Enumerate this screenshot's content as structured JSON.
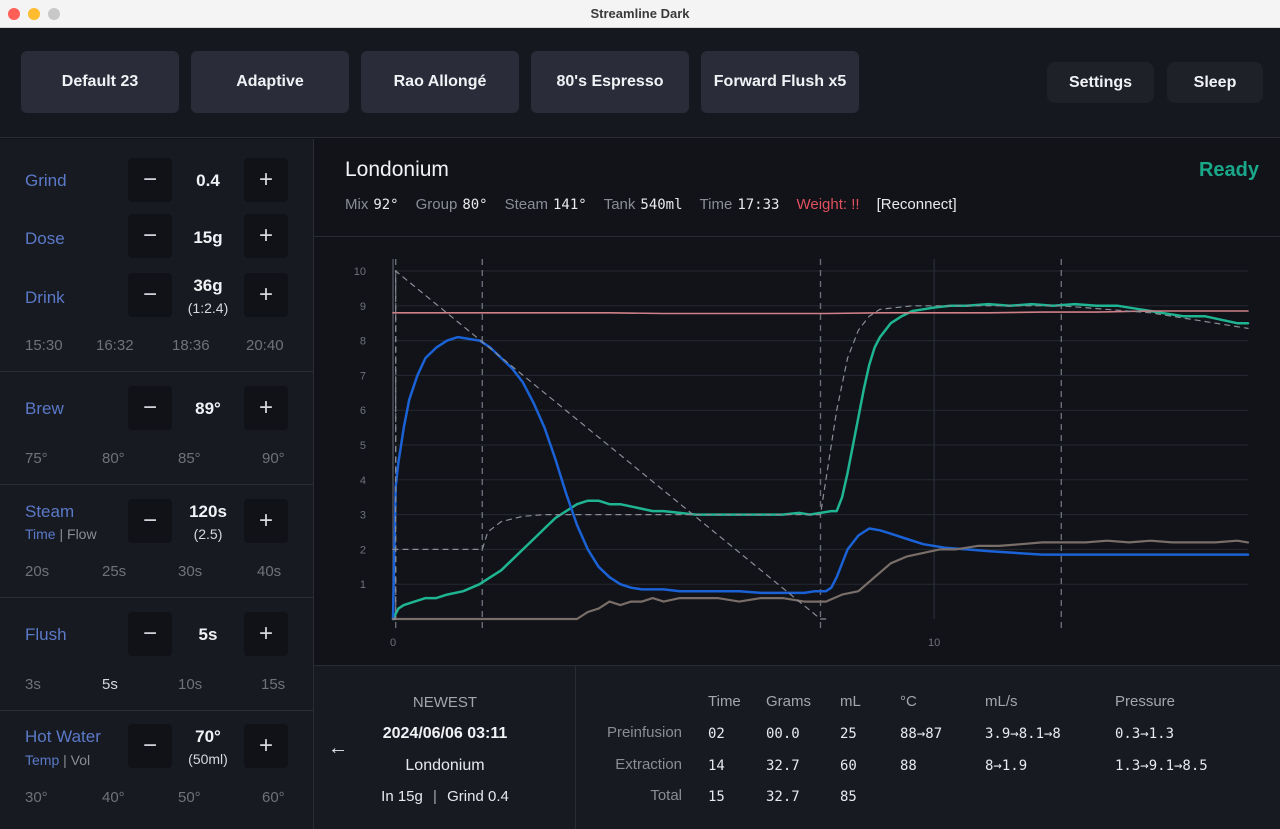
{
  "window": {
    "title": "Streamline Dark"
  },
  "presets": [
    "Default 23",
    "Adaptive",
    "Rao Allongé",
    "80's Espresso",
    "Forward Flush x5"
  ],
  "top_buttons": {
    "settings": "Settings",
    "sleep": "Sleep"
  },
  "params": {
    "grind": {
      "label": "Grind",
      "value": "0.4"
    },
    "dose": {
      "label": "Dose",
      "value": "15g"
    },
    "drink": {
      "label": "Drink",
      "value": "36g",
      "ratio": "(1:2.4)",
      "quick": [
        "15:30",
        "16:32",
        "18:36",
        "20:40"
      ]
    },
    "brew": {
      "label": "Brew",
      "value": "89°",
      "quick": [
        "75°",
        "80°",
        "85°",
        "90°"
      ]
    },
    "steam": {
      "label": "Steam",
      "sub_active": "Time",
      "sub_sep": "|",
      "sub_other": "Flow",
      "value": "120s",
      "sub_value": "(2.5)",
      "quick": [
        "20s",
        "25s",
        "30s",
        "40s"
      ]
    },
    "flush": {
      "label": "Flush",
      "value": "5s",
      "quick": [
        "3s",
        "5s",
        "10s",
        "15s"
      ],
      "selected_index": 1
    },
    "hotwater": {
      "label": "Hot Water",
      "sub_active": "Temp",
      "sub_sep": "|",
      "sub_other": "Vol",
      "value": "70°",
      "sub_value": "(50ml)",
      "quick": [
        "30°",
        "40°",
        "50°",
        "60°"
      ]
    }
  },
  "controls": {
    "minus": "−",
    "plus": "+"
  },
  "header": {
    "bean": "Londonium",
    "status": "Ready",
    "mix_label": "Mix",
    "mix": "92°",
    "group_label": "Group",
    "group": "80°",
    "steam_label": "Steam",
    "steam": "141°",
    "tank_label": "Tank",
    "tank": "540ml",
    "time_label": "Time",
    "time": "17:33",
    "weight_label": "Weight: !!",
    "reconnect": "[Reconnect]"
  },
  "colors": {
    "accent": "#1aa88a",
    "flow": "#1a62d6",
    "pressure": "#1fb592",
    "weight": "#7a6e68",
    "temperature": "#d08088",
    "warning": "#e0505f",
    "label_blue": "#5a79c8"
  },
  "chart_data": {
    "type": "line",
    "xlim": [
      0,
      15.8
    ],
    "ylim": [
      0,
      10
    ],
    "ytick_labels": [
      "1",
      "2",
      "3",
      "4",
      "5",
      "6",
      "7",
      "8",
      "9",
      "10"
    ],
    "xtick_labels": [
      "0",
      "10"
    ],
    "xticks": [
      0,
      10
    ],
    "phase_markers": [
      0.05,
      1.65,
      7.9,
      12.35
    ],
    "series": [
      {
        "key": "pressure",
        "color": "#1fb592",
        "width": 2.5,
        "x": [
          0,
          0.1,
          0.2,
          0.4,
          0.6,
          0.8,
          1.0,
          1.3,
          1.6,
          1.8,
          2.0,
          2.2,
          2.4,
          2.6,
          2.8,
          3.0,
          3.2,
          3.4,
          3.6,
          3.8,
          4.0,
          4.2,
          4.5,
          4.8,
          5.0,
          5.3,
          5.6,
          6.0,
          6.4,
          6.8,
          7.2,
          7.5,
          7.7,
          7.9,
          8.1,
          8.2,
          8.3,
          8.4,
          8.5,
          8.6,
          8.7,
          8.8,
          8.9,
          9.0,
          9.2,
          9.4,
          9.6,
          9.8,
          10.0,
          10.3,
          10.6,
          11.0,
          11.4,
          11.8,
          12.2,
          12.6,
          13.0,
          13.4,
          13.8,
          14.2,
          14.6,
          15.0,
          15.3,
          15.6,
          15.8
        ],
        "y": [
          0,
          0.3,
          0.4,
          0.5,
          0.6,
          0.6,
          0.7,
          0.8,
          1.0,
          1.2,
          1.4,
          1.7,
          2.0,
          2.3,
          2.6,
          2.9,
          3.1,
          3.3,
          3.4,
          3.4,
          3.3,
          3.3,
          3.2,
          3.1,
          3.1,
          3.05,
          3.0,
          3.0,
          3.0,
          3.0,
          3.0,
          3.05,
          3.0,
          3.05,
          3.1,
          3.1,
          3.5,
          4.2,
          5.0,
          5.8,
          6.6,
          7.3,
          7.8,
          8.1,
          8.5,
          8.7,
          8.85,
          8.9,
          8.95,
          9.0,
          9.0,
          9.05,
          9.0,
          9.05,
          9.0,
          9.05,
          9.0,
          9.0,
          8.9,
          8.8,
          8.7,
          8.7,
          8.6,
          8.5,
          8.5
        ]
      },
      {
        "key": "flow",
        "color": "#1a62d6",
        "width": 2.5,
        "x": [
          0,
          0.05,
          0.1,
          0.2,
          0.3,
          0.45,
          0.6,
          0.8,
          1.0,
          1.2,
          1.4,
          1.6,
          1.8,
          2.0,
          2.2,
          2.4,
          2.6,
          2.8,
          3.0,
          3.2,
          3.4,
          3.6,
          3.8,
          4.0,
          4.2,
          4.4,
          4.6,
          4.8,
          5.0,
          5.3,
          5.6,
          6.0,
          6.4,
          6.8,
          7.2,
          7.6,
          7.8,
          8.0,
          8.1,
          8.2,
          8.3,
          8.4,
          8.6,
          8.8,
          9.0,
          9.2,
          9.5,
          9.8,
          10.2,
          10.6,
          11.0,
          11.5,
          12.0,
          12.5,
          13.0,
          13.5,
          14.0,
          14.5,
          15.0,
          15.3,
          15.6,
          15.8
        ],
        "y": [
          0,
          3.8,
          4.5,
          5.5,
          6.3,
          7.0,
          7.5,
          7.8,
          8.0,
          8.1,
          8.05,
          8.0,
          7.8,
          7.5,
          7.2,
          6.8,
          6.2,
          5.5,
          4.6,
          3.6,
          2.7,
          2.0,
          1.5,
          1.2,
          1.0,
          0.9,
          0.85,
          0.85,
          0.85,
          0.8,
          0.8,
          0.8,
          0.8,
          0.75,
          0.75,
          0.75,
          0.8,
          0.8,
          0.9,
          1.2,
          1.6,
          2.0,
          2.4,
          2.6,
          2.55,
          2.45,
          2.3,
          2.15,
          2.05,
          2.0,
          1.95,
          1.9,
          1.85,
          1.85,
          1.85,
          1.85,
          1.85,
          1.85,
          1.85,
          1.85,
          1.85,
          1.85
        ]
      },
      {
        "key": "weight",
        "color": "#7a6e68",
        "width": 2.2,
        "x": [
          0,
          1.0,
          2.0,
          3.0,
          3.4,
          3.6,
          3.8,
          4.0,
          4.2,
          4.4,
          4.6,
          4.8,
          5.0,
          5.3,
          5.6,
          6.0,
          6.4,
          6.8,
          7.2,
          7.6,
          8.0,
          8.3,
          8.6,
          8.9,
          9.2,
          9.5,
          9.8,
          10.1,
          10.4,
          10.8,
          11.2,
          11.6,
          12.0,
          12.4,
          12.8,
          13.2,
          13.6,
          14.0,
          14.4,
          14.8,
          15.2,
          15.6,
          15.8
        ],
        "y": [
          0,
          0,
          0,
          0,
          0,
          0.2,
          0.3,
          0.5,
          0.4,
          0.5,
          0.5,
          0.6,
          0.5,
          0.6,
          0.6,
          0.6,
          0.5,
          0.6,
          0.6,
          0.5,
          0.5,
          0.7,
          0.8,
          1.2,
          1.6,
          1.8,
          1.9,
          2.0,
          2.0,
          2.1,
          2.1,
          2.15,
          2.2,
          2.2,
          2.2,
          2.25,
          2.2,
          2.25,
          2.2,
          2.2,
          2.2,
          2.25,
          2.2
        ]
      },
      {
        "key": "temperature",
        "color": "#d08088",
        "width": 1.6,
        "x": [
          0,
          1,
          2,
          3,
          4,
          5,
          6,
          7,
          8,
          9,
          10,
          11,
          12,
          13,
          14,
          15,
          15.8
        ],
        "y": [
          8.8,
          8.8,
          8.8,
          8.8,
          8.8,
          8.78,
          8.78,
          8.78,
          8.78,
          8.8,
          8.8,
          8.8,
          8.82,
          8.82,
          8.85,
          8.85,
          8.85
        ]
      },
      {
        "key": "target_pressure",
        "color": "#8a8d97",
        "width": 1.2,
        "dash": "5,5",
        "x": [
          0,
          1.65,
          1.75,
          2.0,
          2.4,
          2.8,
          3.2,
          3.6,
          4.0,
          7.9,
          8.0,
          8.2,
          8.4,
          8.6,
          8.8,
          9.0,
          9.6,
          10.6,
          12.35,
          14.0,
          15.8
        ],
        "y": [
          2,
          2,
          2.5,
          2.8,
          2.95,
          3.0,
          3.0,
          3.0,
          3.0,
          3.0,
          4.0,
          6.0,
          7.5,
          8.3,
          8.7,
          8.9,
          9.0,
          9.0,
          9.0,
          8.8,
          8.35
        ]
      },
      {
        "key": "target_flow",
        "color": "#8a8d97",
        "width": 1.2,
        "dash": "5,5",
        "x": [
          0,
          0.05,
          0.05,
          7.9,
          7.9,
          8.0
        ],
        "y": [
          0,
          0,
          10,
          0,
          0,
          0
        ]
      }
    ]
  },
  "last_shot": {
    "label": "NEWEST",
    "datetime": "2024/06/06 03:11",
    "bean": "Londonium",
    "in": "In 15g",
    "sep": "|",
    "grind": "Grind 0.4",
    "back": "←"
  },
  "shot_table": {
    "columns": [
      "Time",
      "Grams",
      "mL",
      "°C",
      "mL/s",
      "Pressure"
    ],
    "rows": [
      {
        "label": "Preinfusion",
        "cells": [
          "02",
          "00.0",
          "25",
          "88→87",
          "3.9→8.1→8",
          "0.3→1.3"
        ]
      },
      {
        "label": "Extraction",
        "cells": [
          "14",
          "32.7",
          "60",
          "88",
          "8→1.9",
          "1.3→9.1→8.5"
        ]
      },
      {
        "label": "Total",
        "cells": [
          "15",
          "32.7",
          "85",
          "",
          "",
          ""
        ]
      }
    ]
  }
}
